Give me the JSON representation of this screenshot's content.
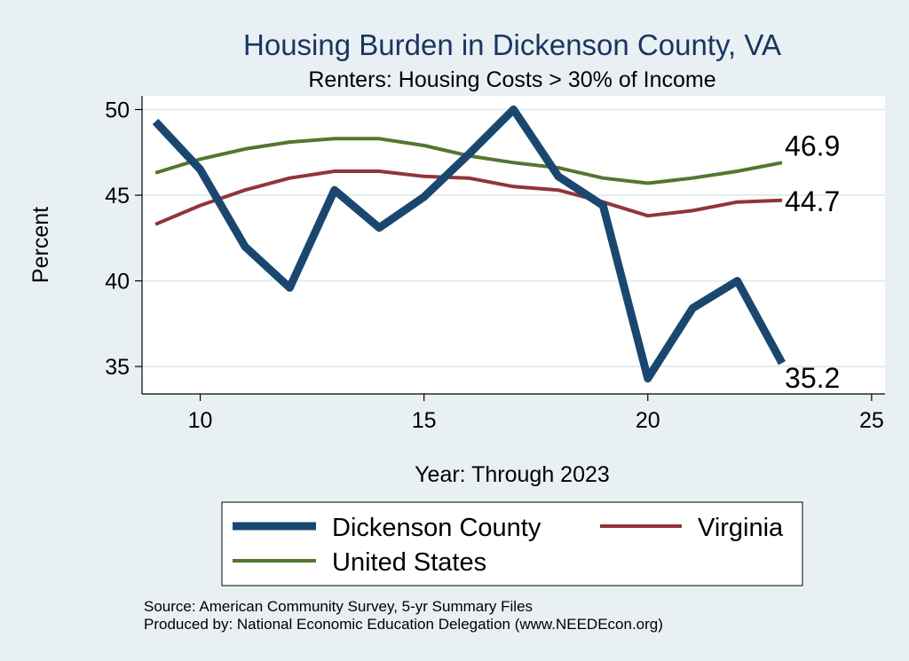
{
  "chart_data": {
    "type": "line",
    "title": "Housing Burden in Dickenson County, VA",
    "subtitle": "Renters: Housing Costs > 30% of Income",
    "xlabel": "Year: Through 2023",
    "ylabel": "Percent",
    "xlim": [
      8.7,
      25.3
    ],
    "ylim": [
      33.4,
      50.8
    ],
    "xticks": [
      10,
      15,
      20,
      25
    ],
    "yticks": [
      35,
      40,
      45,
      50
    ],
    "grid": true,
    "legend_position": "bottom",
    "x": [
      9,
      10,
      11,
      12,
      13,
      14,
      15,
      16,
      17,
      18,
      19,
      20,
      21,
      22,
      23
    ],
    "series": [
      {
        "name": "Dickenson County",
        "color": "#1a476f",
        "values": [
          49.3,
          46.5,
          42.0,
          39.6,
          45.3,
          43.1,
          44.9,
          47.4,
          50.0,
          46.1,
          44.4,
          34.3,
          38.4,
          40.0,
          35.2
        ],
        "end_label": "35.2"
      },
      {
        "name": "Virginia",
        "color": "#90353b",
        "values": [
          43.3,
          44.4,
          45.3,
          46.0,
          46.4,
          46.4,
          46.1,
          46.0,
          45.5,
          45.3,
          44.6,
          43.8,
          44.1,
          44.6,
          44.7
        ],
        "end_label": "44.7"
      },
      {
        "name": "United States",
        "color": "#55752f",
        "values": [
          46.3,
          47.1,
          47.7,
          48.1,
          48.3,
          48.3,
          47.9,
          47.3,
          46.9,
          46.6,
          46.0,
          45.7,
          46.0,
          46.4,
          46.9
        ],
        "end_label": "46.9"
      }
    ]
  },
  "source": "Source: American Community Survey, 5-yr Summary Files",
  "producer": "Produced by: National Economic Education Delegation (www.NEEDEcon.org)"
}
